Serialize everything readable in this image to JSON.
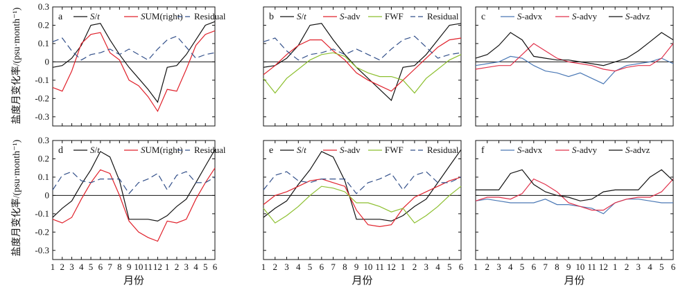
{
  "figure": {
    "y_axis_label": "盐度月变化率/(psu·month⁻¹)",
    "x_axis_label": "月份"
  },
  "colors": {
    "black": "#111111",
    "red": "#e0202a",
    "blue_dash": "#33508a",
    "green": "#8cbf2e",
    "blue": "#4a78b5",
    "pink": "#e0304a"
  },
  "chart_data": [
    {
      "type": "line",
      "panel": "a",
      "x": [
        "1",
        "2",
        "3",
        "4",
        "5",
        "6",
        "7",
        "8",
        "9",
        "10",
        "11",
        "12",
        "1",
        "2",
        "3",
        "4",
        "5",
        "6"
      ],
      "ylim": [
        -0.35,
        0.3
      ],
      "yticks": [
        -0.3,
        -0.2,
        -0.1,
        0,
        0.1,
        0.2,
        0.3
      ],
      "legend": "top",
      "series": [
        {
          "name": "S/t",
          "color": "black",
          "dash": false,
          "values": [
            -0.03,
            -0.02,
            0.02,
            0.09,
            0.2,
            0.21,
            0.12,
            0.04,
            -0.03,
            -0.09,
            -0.15,
            -0.22,
            -0.03,
            -0.02,
            0.04,
            0.12,
            0.2,
            0.22
          ]
        },
        {
          "name": "SUM(right)",
          "color": "red",
          "dash": false,
          "values": [
            -0.14,
            -0.16,
            -0.05,
            0.1,
            0.15,
            0.16,
            0.05,
            0.01,
            -0.1,
            -0.13,
            -0.19,
            -0.27,
            -0.15,
            -0.16,
            -0.04,
            0.09,
            0.15,
            0.17
          ]
        },
        {
          "name": "Residual",
          "color": "blue_dash",
          "dash": true,
          "values": [
            0.11,
            0.13,
            0.06,
            0.01,
            0.04,
            0.05,
            0.07,
            0.04,
            0.07,
            0.04,
            0.01,
            0.07,
            0.12,
            0.14,
            0.08,
            0.02,
            0.04,
            0.05
          ]
        }
      ]
    },
    {
      "type": "line",
      "panel": "b",
      "x": [
        "1",
        "2",
        "3",
        "4",
        "5",
        "6",
        "7",
        "8",
        "9",
        "10",
        "11",
        "12",
        "1",
        "2",
        "3",
        "4",
        "5",
        "6"
      ],
      "ylim": [
        -0.35,
        0.3
      ],
      "legend": "top",
      "series": [
        {
          "name": "S/t",
          "color": "black",
          "dash": false,
          "values": [
            -0.03,
            -0.02,
            0.02,
            0.09,
            0.2,
            0.21,
            0.12,
            0.04,
            -0.03,
            -0.09,
            -0.15,
            -0.21,
            -0.03,
            -0.02,
            0.04,
            0.12,
            0.2,
            0.21
          ]
        },
        {
          "name": "S-adv",
          "color": "red",
          "dash": false,
          "values": [
            -0.07,
            -0.02,
            0.04,
            0.09,
            0.12,
            0.12,
            0.06,
            0.01,
            -0.06,
            -0.1,
            -0.13,
            -0.16,
            -0.1,
            -0.04,
            0.02,
            0.08,
            0.12,
            0.13
          ]
        },
        {
          "name": "FWF",
          "color": "green",
          "dash": false,
          "values": [
            -0.09,
            -0.17,
            -0.09,
            -0.04,
            0.01,
            0.04,
            0.05,
            0.03,
            -0.03,
            -0.06,
            -0.08,
            -0.08,
            -0.1,
            -0.17,
            -0.09,
            -0.04,
            0.01,
            0.04
          ]
        },
        {
          "name": "Residual",
          "color": "blue_dash",
          "dash": true,
          "values": [
            0.11,
            0.13,
            0.06,
            0.01,
            0.04,
            0.05,
            0.07,
            0.04,
            0.07,
            0.04,
            0.01,
            0.07,
            0.12,
            0.14,
            0.08,
            0.02,
            0.04,
            0.05
          ]
        }
      ]
    },
    {
      "type": "line",
      "panel": "c",
      "x": [
        "1",
        "2",
        "3",
        "4",
        "5",
        "6",
        "7",
        "8",
        "9",
        "10",
        "11",
        "12",
        "1",
        "2",
        "3",
        "4",
        "5",
        "6"
      ],
      "ylim": [
        -0.35,
        0.3
      ],
      "legend": "top",
      "series": [
        {
          "name": "S-advx",
          "color": "blue",
          "dash": false,
          "values": [
            -0.02,
            -0.01,
            0.0,
            0.03,
            0.02,
            -0.02,
            -0.05,
            -0.06,
            -0.08,
            -0.06,
            -0.09,
            -0.12,
            -0.05,
            -0.02,
            -0.01,
            0.0,
            0.02,
            -0.01
          ]
        },
        {
          "name": "S-advy",
          "color": "pink",
          "dash": false,
          "values": [
            -0.04,
            -0.03,
            -0.02,
            -0.02,
            0.04,
            0.1,
            0.06,
            0.02,
            0.0,
            -0.01,
            -0.02,
            -0.04,
            -0.05,
            -0.03,
            -0.02,
            -0.02,
            0.02,
            0.1
          ]
        },
        {
          "name": "S-advz",
          "color": "black",
          "dash": false,
          "values": [
            0.02,
            0.04,
            0.09,
            0.16,
            0.12,
            0.03,
            0.02,
            0.01,
            0.01,
            0.0,
            -0.01,
            -0.02,
            0.0,
            0.02,
            0.06,
            0.11,
            0.16,
            0.12
          ]
        }
      ]
    },
    {
      "type": "line",
      "panel": "d",
      "x": [
        "1",
        "2",
        "3",
        "4",
        "5",
        "6",
        "7",
        "8",
        "9",
        "10",
        "11",
        "12",
        "1",
        "2",
        "3",
        "4",
        "5",
        "6"
      ],
      "ylim": [
        -0.35,
        0.3
      ],
      "yticks": [
        -0.3,
        -0.2,
        -0.1,
        0,
        0.1,
        0.2,
        0.3
      ],
      "legend": "top",
      "series": [
        {
          "name": "S/t",
          "color": "black",
          "dash": false,
          "values": [
            -0.12,
            -0.07,
            -0.03,
            0.06,
            0.14,
            0.24,
            0.21,
            0.08,
            -0.13,
            -0.13,
            -0.13,
            -0.14,
            -0.11,
            -0.06,
            -0.02,
            0.07,
            0.16,
            0.25
          ]
        },
        {
          "name": "SUM(right)",
          "color": "red",
          "dash": false,
          "values": [
            -0.13,
            -0.15,
            -0.12,
            -0.02,
            0.07,
            0.14,
            0.12,
            0.0,
            -0.14,
            -0.2,
            -0.23,
            -0.25,
            -0.14,
            -0.15,
            -0.13,
            -0.02,
            0.07,
            0.15
          ]
        },
        {
          "name": "Residual",
          "color": "blue_dash",
          "dash": true,
          "values": [
            0.03,
            0.11,
            0.13,
            0.08,
            0.07,
            0.09,
            0.09,
            0.09,
            0.01,
            0.07,
            0.09,
            0.12,
            0.03,
            0.11,
            0.13,
            0.07,
            0.07,
            0.1
          ]
        }
      ]
    },
    {
      "type": "line",
      "panel": "e",
      "x": [
        "1",
        "2",
        "3",
        "4",
        "5",
        "6",
        "7",
        "8",
        "9",
        "10",
        "11",
        "12",
        "1",
        "2",
        "3",
        "4",
        "5",
        "6"
      ],
      "ylim": [
        -0.35,
        0.3
      ],
      "legend": "top",
      "series": [
        {
          "name": "S/t",
          "color": "black",
          "dash": false,
          "values": [
            -0.12,
            -0.07,
            -0.03,
            0.06,
            0.14,
            0.24,
            0.21,
            0.08,
            -0.13,
            -0.13,
            -0.13,
            -0.14,
            -0.11,
            -0.06,
            -0.02,
            0.07,
            0.16,
            0.25
          ]
        },
        {
          "name": "S-adv",
          "color": "red",
          "dash": false,
          "values": [
            -0.05,
            0.0,
            0.02,
            0.05,
            0.08,
            0.09,
            0.07,
            0.05,
            -0.08,
            -0.16,
            -0.17,
            -0.16,
            -0.07,
            -0.01,
            0.02,
            0.05,
            0.08,
            0.1
          ]
        },
        {
          "name": "FWF",
          "color": "green",
          "dash": false,
          "values": [
            -0.07,
            -0.15,
            -0.11,
            -0.06,
            0.0,
            0.05,
            0.04,
            0.02,
            -0.04,
            -0.04,
            -0.06,
            -0.09,
            -0.07,
            -0.15,
            -0.11,
            -0.06,
            0.0,
            0.05
          ]
        },
        {
          "name": "Residual",
          "color": "blue_dash",
          "dash": true,
          "values": [
            0.03,
            0.11,
            0.13,
            0.08,
            0.07,
            0.09,
            0.09,
            0.09,
            0.01,
            0.07,
            0.09,
            0.12,
            0.03,
            0.11,
            0.13,
            0.07,
            0.07,
            0.1
          ]
        }
      ]
    },
    {
      "type": "line",
      "panel": "f",
      "x": [
        "1",
        "2",
        "3",
        "4",
        "5",
        "6",
        "7",
        "8",
        "9",
        "10",
        "11",
        "12",
        "1",
        "2",
        "3",
        "4",
        "5",
        "6"
      ],
      "ylim": [
        -0.35,
        0.3
      ],
      "legend": "top",
      "series": [
        {
          "name": "S-advx",
          "color": "blue",
          "dash": false,
          "values": [
            -0.03,
            -0.02,
            -0.03,
            -0.04,
            -0.04,
            -0.04,
            -0.02,
            -0.05,
            -0.05,
            -0.06,
            -0.07,
            -0.1,
            -0.04,
            -0.02,
            -0.02,
            -0.03,
            -0.04,
            -0.04
          ]
        },
        {
          "name": "S-advy",
          "color": "pink",
          "dash": false,
          "values": [
            -0.03,
            -0.01,
            -0.01,
            -0.02,
            0.01,
            0.09,
            0.06,
            0.02,
            -0.04,
            -0.06,
            -0.08,
            -0.08,
            -0.04,
            -0.02,
            -0.01,
            -0.01,
            0.02,
            0.09
          ]
        },
        {
          "name": "S-advz",
          "color": "black",
          "dash": false,
          "values": [
            0.03,
            0.03,
            0.03,
            0.12,
            0.14,
            0.06,
            0.02,
            0.0,
            -0.01,
            -0.03,
            -0.02,
            0.02,
            0.03,
            0.03,
            0.03,
            0.1,
            0.14,
            0.08
          ]
        }
      ]
    }
  ]
}
